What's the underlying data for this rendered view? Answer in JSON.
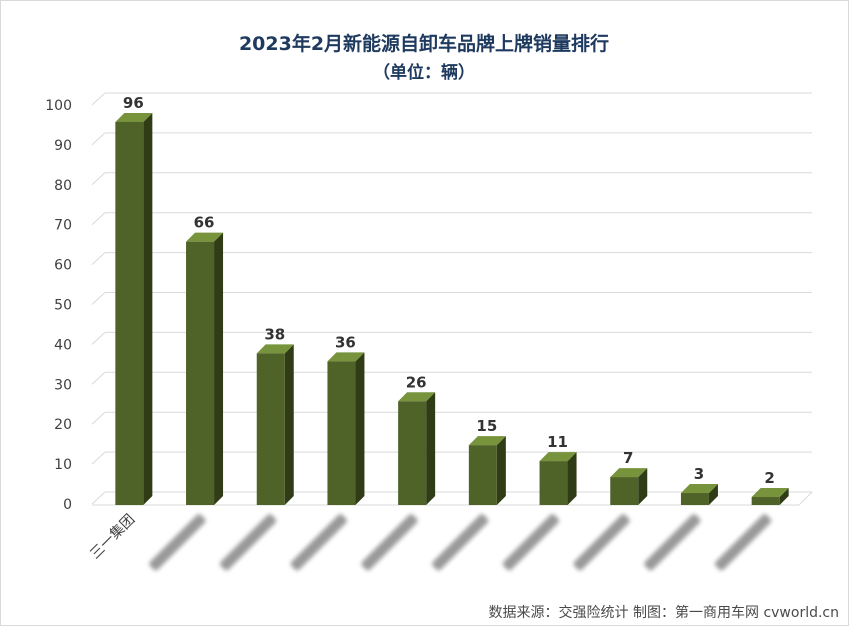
{
  "chart_data": {
    "type": "bar",
    "title": "2023年2月新能源自卸车品牌上牌销量排行",
    "subtitle": "（单位：辆）",
    "categories": [
      "三一集团",
      "",
      "",
      "",
      "",
      "",
      "",
      "",
      "",
      ""
    ],
    "values": [
      96,
      66,
      38,
      36,
      26,
      15,
      11,
      7,
      3,
      2
    ],
    "ylim": [
      0,
      100
    ],
    "yticks": [
      0,
      10,
      20,
      30,
      40,
      50,
      60,
      70,
      80,
      90,
      100
    ],
    "grid": true,
    "bar_color": "#4f6228",
    "bar_side_color": "#2f3c16",
    "bar_top_color": "#77933c",
    "blurred_category_labels": true
  },
  "source_note": "数据来源：交强险统计  制图：第一商用车网 cvworld.cn"
}
